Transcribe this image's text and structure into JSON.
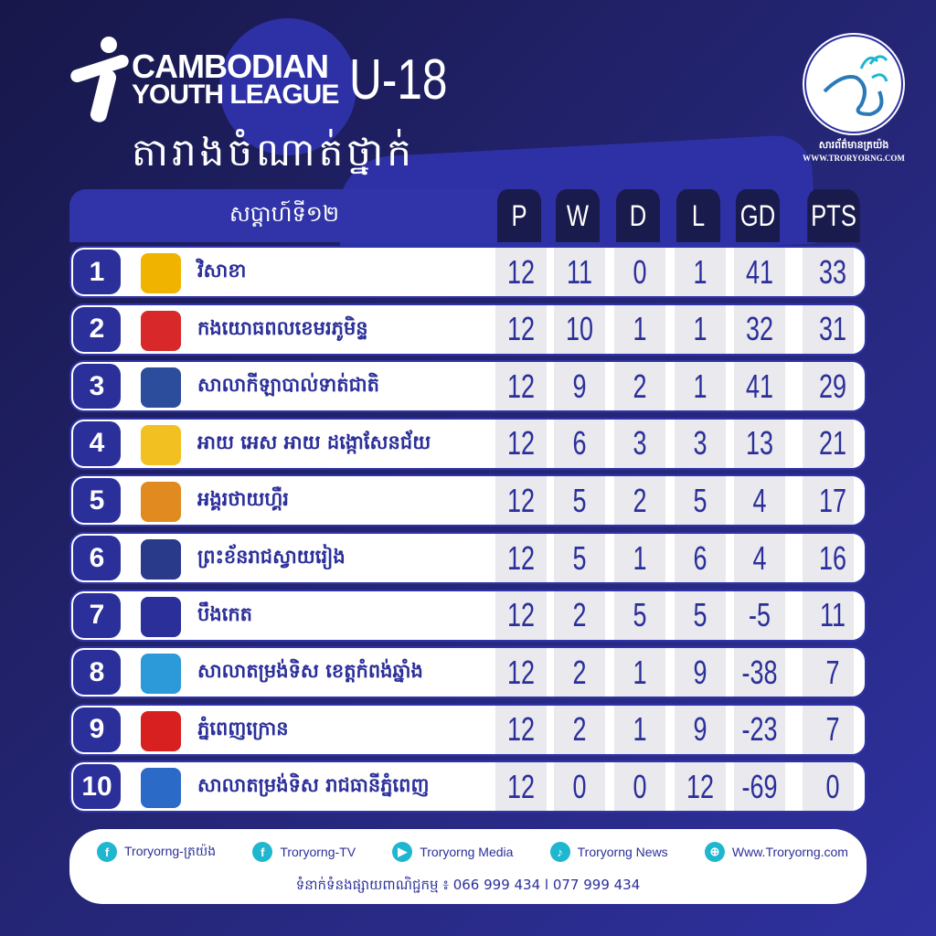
{
  "header": {
    "brand_line1": "CAMBODIAN",
    "brand_line2": "YOUTH LEAGUE",
    "age_group": "U-18",
    "title_kh": "តារាងចំណាត់ថ្នាក់"
  },
  "publisher": {
    "name_kh": "សារព័ត៌មានត្រយ៉ង",
    "url": "WWW.TRORYORNG.COM"
  },
  "table": {
    "week_label": "សប្តាហ៍ទី១២",
    "columns": [
      "P",
      "W",
      "D",
      "L",
      "GD",
      "PTS"
    ],
    "rows": [
      {
        "rank": "1",
        "team": "វិសាខា",
        "crest_color": "#f0b400",
        "P": "12",
        "W": "11",
        "D": "0",
        "L": "1",
        "GD": "41",
        "PTS": "33"
      },
      {
        "rank": "2",
        "team": "កងយោធពលខេមរភូមិន្ទ",
        "crest_color": "#d8282a",
        "P": "12",
        "W": "10",
        "D": "1",
        "L": "1",
        "GD": "32",
        "PTS": "31"
      },
      {
        "rank": "3",
        "team": "សាលាកីឡាបាល់ទាត់ជាតិ",
        "crest_color": "#2c4c9c",
        "P": "12",
        "W": "9",
        "D": "2",
        "L": "1",
        "GD": "41",
        "PTS": "29"
      },
      {
        "rank": "4",
        "team": "អាយ អេស អាយ ដង្កោសែនជ័យ",
        "crest_color": "#f2c020",
        "P": "12",
        "W": "6",
        "D": "3",
        "L": "3",
        "GD": "13",
        "PTS": "21"
      },
      {
        "rank": "5",
        "team": "អង្គរថាយហ្គឺរ",
        "crest_color": "#e08a20",
        "P": "12",
        "W": "5",
        "D": "2",
        "L": "5",
        "GD": "4",
        "PTS": "17"
      },
      {
        "rank": "6",
        "team": "ព្រះខ័នរាជស្វាយរៀង",
        "crest_color": "#2a3a8a",
        "P": "12",
        "W": "5",
        "D": "1",
        "L": "6",
        "GD": "4",
        "PTS": "16"
      },
      {
        "rank": "7",
        "team": "បឹងកេត",
        "crest_color": "#2a2f9a",
        "P": "12",
        "W": "2",
        "D": "5",
        "L": "5",
        "GD": "-5",
        "PTS": "11"
      },
      {
        "rank": "8",
        "team": "សាលាតម្រង់ទិស ខេត្តកំពង់ឆ្នាំង",
        "crest_color": "#2c9ad8",
        "P": "12",
        "W": "2",
        "D": "1",
        "L": "9",
        "GD": "-38",
        "PTS": "7"
      },
      {
        "rank": "9",
        "team": "ភ្នំពេញក្រោន",
        "crest_color": "#d82020",
        "P": "12",
        "W": "2",
        "D": "1",
        "L": "9",
        "GD": "-23",
        "PTS": "7"
      },
      {
        "rank": "10",
        "team": "សាលាតម្រង់ទិស រាជធានីភ្នំពេញ",
        "crest_color": "#2c6ac8",
        "P": "12",
        "W": "0",
        "D": "0",
        "L": "12",
        "GD": "-69",
        "PTS": "0"
      }
    ]
  },
  "footer": {
    "socials": [
      {
        "icon": "facebook-icon",
        "glyph": "f",
        "label": "Troryorng-ត្រយ៉ង"
      },
      {
        "icon": "facebook-icon",
        "glyph": "f",
        "label": "Troryorng-TV"
      },
      {
        "icon": "youtube-icon",
        "glyph": "▶",
        "label": "Troryorng Media"
      },
      {
        "icon": "tiktok-icon",
        "glyph": "♪",
        "label": "Troryorng News"
      },
      {
        "icon": "globe-icon",
        "glyph": "⊕",
        "label": "Www.Troryorng.com"
      }
    ],
    "contact": "ទំនាក់ទំនងផ្សាយពាណិជ្ជកម្ម ៖ 066 999 434 l 077 999 434"
  },
  "colors": {
    "primary": "#2b2f9a",
    "header_dark": "#1a1b4d",
    "accent": "#1fb6d0"
  }
}
